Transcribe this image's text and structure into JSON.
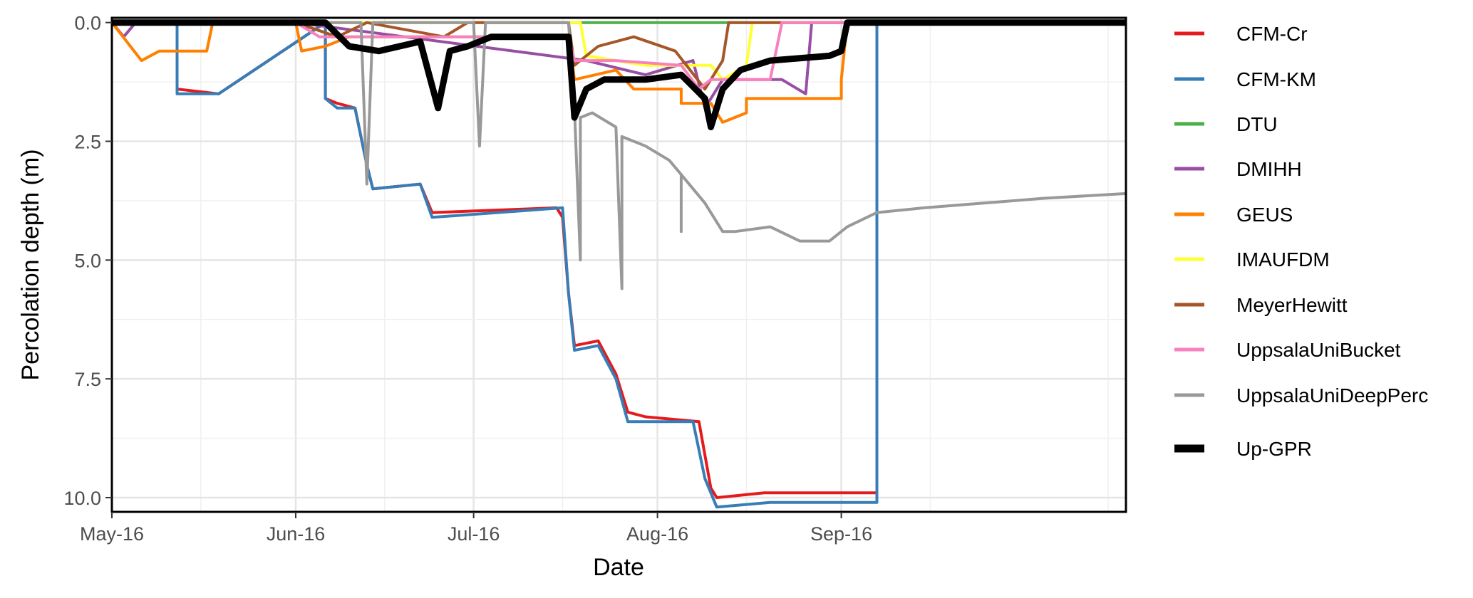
{
  "chart_data": {
    "type": "line",
    "title": "",
    "xlabel": "Date",
    "ylabel": "Percolation depth (m)",
    "x_ticks": [
      "May-16",
      "Jun-16",
      "Jul-16",
      "Aug-16",
      "Sep-16"
    ],
    "y_ticks": [
      "0.0",
      "2.5",
      "5.0",
      "7.5",
      "10.0"
    ],
    "xlim": [
      "2016-05-01",
      "2016-10-19"
    ],
    "ylim": [
      10.3,
      -0.1
    ],
    "y_reversed": true,
    "grid": true,
    "legend_position": "right",
    "series": [
      {
        "name": "CFM-Cr",
        "color": "#E41A1C",
        "points": [
          [
            "2016-05-01",
            0
          ],
          [
            "2016-05-12",
            0
          ],
          [
            "2016-05-12",
            1.4
          ],
          [
            "2016-05-19",
            1.5
          ],
          [
            "2016-06-06",
            0
          ],
          [
            "2016-06-06",
            1.6
          ],
          [
            "2016-06-08",
            1.7
          ],
          [
            "2016-06-11",
            1.8
          ],
          [
            "2016-06-13",
            3.0
          ],
          [
            "2016-06-14",
            3.5
          ],
          [
            "2016-06-22",
            3.4
          ],
          [
            "2016-06-24",
            4.0
          ],
          [
            "2016-07-15",
            3.9
          ],
          [
            "2016-07-16",
            4.1
          ],
          [
            "2016-07-17",
            5.7
          ],
          [
            "2016-07-18",
            6.8
          ],
          [
            "2016-07-22",
            6.7
          ],
          [
            "2016-07-25",
            7.4
          ],
          [
            "2016-07-27",
            8.2
          ],
          [
            "2016-07-30",
            8.3
          ],
          [
            "2016-08-08",
            8.4
          ],
          [
            "2016-08-10",
            9.8
          ],
          [
            "2016-08-11",
            10.0
          ],
          [
            "2016-08-19",
            9.9
          ],
          [
            "2016-09-07",
            9.9
          ],
          [
            "2016-09-07",
            0
          ],
          [
            "2016-10-19",
            0
          ]
        ]
      },
      {
        "name": "CFM-KM",
        "color": "#377EB8",
        "points": [
          [
            "2016-05-01",
            0
          ],
          [
            "2016-05-12",
            0
          ],
          [
            "2016-05-12",
            1.5
          ],
          [
            "2016-05-19",
            1.5
          ],
          [
            "2016-06-06",
            0
          ],
          [
            "2016-06-06",
            1.6
          ],
          [
            "2016-06-08",
            1.8
          ],
          [
            "2016-06-11",
            1.8
          ],
          [
            "2016-06-13",
            3.0
          ],
          [
            "2016-06-14",
            3.5
          ],
          [
            "2016-06-22",
            3.4
          ],
          [
            "2016-06-24",
            4.1
          ],
          [
            "2016-07-16",
            3.9
          ],
          [
            "2016-07-17",
            5.7
          ],
          [
            "2016-07-18",
            6.9
          ],
          [
            "2016-07-22",
            6.8
          ],
          [
            "2016-07-25",
            7.5
          ],
          [
            "2016-07-27",
            8.4
          ],
          [
            "2016-08-07",
            8.4
          ],
          [
            "2016-08-09",
            9.6
          ],
          [
            "2016-08-11",
            10.2
          ],
          [
            "2016-08-20",
            10.1
          ],
          [
            "2016-09-07",
            10.1
          ],
          [
            "2016-09-07",
            0
          ],
          [
            "2016-10-19",
            0
          ]
        ]
      },
      {
        "name": "DTU",
        "color": "#4DAF4A",
        "points": [
          [
            "2016-05-01",
            0
          ],
          [
            "2016-10-19",
            0
          ]
        ]
      },
      {
        "name": "DMIHH",
        "color": "#984EA3",
        "points": [
          [
            "2016-05-01",
            0
          ],
          [
            "2016-05-03",
            0.3
          ],
          [
            "2016-05-05",
            0
          ],
          [
            "2016-06-01",
            0
          ],
          [
            "2016-07-20",
            0.8
          ],
          [
            "2016-07-30",
            1.1
          ],
          [
            "2016-08-07",
            0.8
          ],
          [
            "2016-08-09",
            1.8
          ],
          [
            "2016-08-12",
            1.2
          ],
          [
            "2016-08-22",
            1.2
          ],
          [
            "2016-08-26",
            1.5
          ],
          [
            "2016-08-27",
            0
          ],
          [
            "2016-10-19",
            0
          ]
        ]
      },
      {
        "name": "GEUS",
        "color": "#FF7F00",
        "points": [
          [
            "2016-05-01",
            0
          ],
          [
            "2016-05-06",
            0.8
          ],
          [
            "2016-05-09",
            0.6
          ],
          [
            "2016-05-17",
            0.6
          ],
          [
            "2016-05-18",
            0
          ],
          [
            "2016-06-01",
            0
          ],
          [
            "2016-06-02",
            0.6
          ],
          [
            "2016-06-06",
            0.5
          ],
          [
            "2016-06-10",
            0.3
          ],
          [
            "2016-07-17",
            0.3
          ],
          [
            "2016-07-18",
            1.2
          ],
          [
            "2016-07-25",
            1.0
          ],
          [
            "2016-07-28",
            1.4
          ],
          [
            "2016-08-05",
            1.4
          ],
          [
            "2016-08-05",
            1.7
          ],
          [
            "2016-08-10",
            1.7
          ],
          [
            "2016-08-12",
            2.1
          ],
          [
            "2016-08-16",
            1.9
          ],
          [
            "2016-08-16",
            1.6
          ],
          [
            "2016-09-01",
            1.6
          ],
          [
            "2016-09-01",
            1.2
          ],
          [
            "2016-09-02",
            0
          ],
          [
            "2016-10-19",
            0
          ]
        ]
      },
      {
        "name": "IMAUFDM",
        "color": "#FFFF33",
        "points": [
          [
            "2016-05-01",
            0
          ],
          [
            "2016-07-19",
            0
          ],
          [
            "2016-07-20",
            0.7
          ],
          [
            "2016-07-25",
            0.8
          ],
          [
            "2016-07-30",
            0.9
          ],
          [
            "2016-08-10",
            0.9
          ],
          [
            "2016-08-12",
            1.2
          ],
          [
            "2016-08-16",
            0.9
          ],
          [
            "2016-08-17",
            0
          ],
          [
            "2016-10-19",
            0
          ]
        ]
      },
      {
        "name": "MeyerHewitt",
        "color": "#A65628",
        "points": [
          [
            "2016-05-01",
            0
          ],
          [
            "2016-06-01",
            0
          ],
          [
            "2016-06-08",
            0.3
          ],
          [
            "2016-06-13",
            0
          ],
          [
            "2016-06-26",
            0.3
          ],
          [
            "2016-06-30",
            0
          ],
          [
            "2016-07-17",
            0
          ],
          [
            "2016-07-18",
            0.9
          ],
          [
            "2016-07-22",
            0.5
          ],
          [
            "2016-07-28",
            0.3
          ],
          [
            "2016-08-04",
            0.6
          ],
          [
            "2016-08-09",
            1.4
          ],
          [
            "2016-08-12",
            0.8
          ],
          [
            "2016-08-13",
            0
          ],
          [
            "2016-10-19",
            0
          ]
        ]
      },
      {
        "name": "UppsalaUniBucket",
        "color": "#F781BF",
        "points": [
          [
            "2016-05-01",
            0
          ],
          [
            "2016-06-01",
            0
          ],
          [
            "2016-06-05",
            0.3
          ],
          [
            "2016-06-10",
            0.3
          ],
          [
            "2016-07-17",
            0.3
          ],
          [
            "2016-07-18",
            0.8
          ],
          [
            "2016-07-25",
            0.8
          ],
          [
            "2016-08-05",
            0.9
          ],
          [
            "2016-08-08",
            1.4
          ],
          [
            "2016-08-10",
            1.2
          ],
          [
            "2016-08-20",
            1.2
          ],
          [
            "2016-08-22",
            0
          ],
          [
            "2016-09-05",
            0
          ],
          [
            "2016-10-19",
            0
          ]
        ]
      },
      {
        "name": "UppsalaUniDeepPerc",
        "color": "#999999",
        "points": [
          [
            "2016-05-01",
            0
          ],
          [
            "2016-06-12",
            0
          ],
          [
            "2016-06-13",
            3.4
          ],
          [
            "2016-06-14",
            0
          ],
          [
            "2016-07-01",
            0
          ],
          [
            "2016-07-02",
            2.6
          ],
          [
            "2016-07-03",
            0
          ],
          [
            "2016-07-17",
            0
          ],
          [
            "2016-07-18",
            1.8
          ],
          [
            "2016-07-19",
            5.0
          ],
          [
            "2016-07-19",
            2.0
          ],
          [
            "2016-07-21",
            1.9
          ],
          [
            "2016-07-25",
            2.2
          ],
          [
            "2016-07-26",
            5.6
          ],
          [
            "2016-07-26",
            2.4
          ],
          [
            "2016-07-30",
            2.6
          ],
          [
            "2016-08-03",
            2.9
          ],
          [
            "2016-08-05",
            3.2
          ],
          [
            "2016-08-05",
            4.4
          ],
          [
            "2016-08-05",
            3.2
          ],
          [
            "2016-08-09",
            3.8
          ],
          [
            "2016-08-12",
            4.4
          ],
          [
            "2016-08-14",
            4.4
          ],
          [
            "2016-08-20",
            4.3
          ],
          [
            "2016-08-25",
            4.6
          ],
          [
            "2016-08-30",
            4.6
          ],
          [
            "2016-09-02",
            4.3
          ],
          [
            "2016-09-07",
            4.0
          ],
          [
            "2016-09-15",
            3.9
          ],
          [
            "2016-09-25",
            3.8
          ],
          [
            "2016-10-05",
            3.7
          ],
          [
            "2016-10-19",
            3.6
          ]
        ]
      },
      {
        "name": "Up-GPR",
        "color": "#000000",
        "points": [
          [
            "2016-05-01",
            0
          ],
          [
            "2016-06-06",
            0
          ],
          [
            "2016-06-10",
            0.5
          ],
          [
            "2016-06-15",
            0.6
          ],
          [
            "2016-06-22",
            0.4
          ],
          [
            "2016-06-25",
            1.8
          ],
          [
            "2016-06-27",
            0.6
          ],
          [
            "2016-06-30",
            0.5
          ],
          [
            "2016-07-04",
            0.3
          ],
          [
            "2016-07-17",
            0.3
          ],
          [
            "2016-07-18",
            2.0
          ],
          [
            "2016-07-20",
            1.4
          ],
          [
            "2016-07-23",
            1.2
          ],
          [
            "2016-07-30",
            1.2
          ],
          [
            "2016-08-05",
            1.1
          ],
          [
            "2016-08-09",
            1.6
          ],
          [
            "2016-08-10",
            2.2
          ],
          [
            "2016-08-12",
            1.4
          ],
          [
            "2016-08-15",
            1.0
          ],
          [
            "2016-08-20",
            0.8
          ],
          [
            "2016-08-30",
            0.7
          ],
          [
            "2016-09-01",
            0.6
          ],
          [
            "2016-09-02",
            0
          ],
          [
            "2016-10-19",
            0
          ]
        ]
      }
    ]
  }
}
